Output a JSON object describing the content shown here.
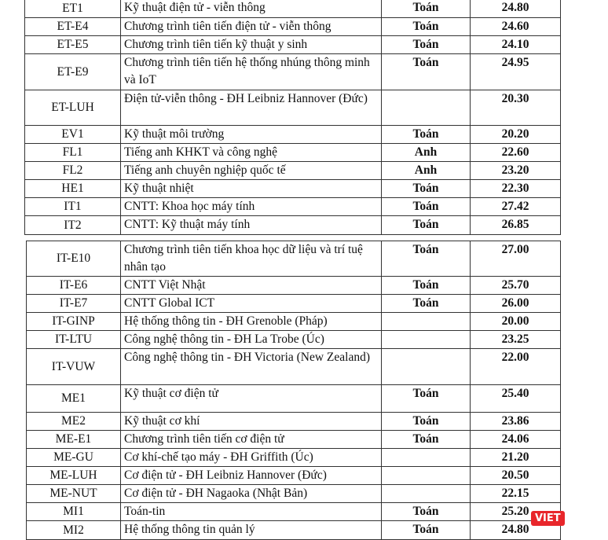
{
  "tables": [
    {
      "rows": [
        [
          "ET1",
          "Kỹ thuật điện tử - viễn thông",
          "Toán",
          "24.80"
        ],
        [
          "ET-E4",
          "Chương trình tiên tiến điện tử - viễn thông",
          "Toán",
          "24.60"
        ],
        [
          "ET-E5",
          "Chương trình tiên tiến kỹ thuật y sinh",
          "Toán",
          "24.10"
        ],
        [
          "ET-E9",
          "Chương trình tiên tiến hệ thống nhúng thông minh và IoT",
          "Toán",
          "24.95"
        ],
        [
          "ET-LUH",
          "Điện tử-viễn thông  - ĐH Leibniz Hannover  (Đức)",
          "",
          "20.30"
        ],
        [
          "EV1",
          "Kỹ thuật môi trường",
          "Toán",
          "20.20"
        ],
        [
          "FL1",
          "Tiếng anh KHKT và công nghệ",
          "Anh",
          "22.60"
        ],
        [
          "FL2",
          "Tiếng anh chuyên nghiệp quốc tế",
          "Anh",
          "23.20"
        ],
        [
          "HE1",
          "Kỹ thuật nhiệt",
          "Toán",
          "22.30"
        ],
        [
          "IT1",
          "CNTT: Khoa học máy tính",
          "Toán",
          "27.42"
        ],
        [
          "IT2",
          "CNTT: Kỹ thuật máy tính",
          "Toán",
          "26.85"
        ]
      ]
    },
    {
      "rows": [
        [
          "IT-E10",
          "Chương trình tiên tiến khoa học dữ liệu và trí tuệ nhân tạo",
          "Toán",
          "27.00"
        ],
        [
          "IT-E6",
          "CNTT Việt Nhật",
          "Toán",
          "25.70"
        ],
        [
          "IT-E7",
          "CNTT Global ICT",
          "Toán",
          "26.00"
        ],
        [
          "IT-GINP",
          "Hệ thống thông tin - ĐH Grenoble (Pháp)",
          "",
          "20.00"
        ],
        [
          "IT-LTU",
          "Công nghệ thông tin - ĐH La Trobe (Úc)",
          "",
          "23.25"
        ],
        [
          "IT-VUW",
          "Công nghệ thông tin - ĐH Victoria (New Zealand)",
          "",
          "22.00"
        ],
        [
          "ME1",
          "Kỹ thuật cơ điện tử",
          "Toán",
          "25.40"
        ],
        [
          "ME2",
          "Kỹ thuật cơ khí",
          "Toán",
          "23.86"
        ],
        [
          "ME-E1",
          "Chương trình tiên tiến cơ điện tử",
          "Toán",
          "24.06"
        ],
        [
          "ME-GU",
          "Cơ khí-chế tạo máy  - ĐH Griffith (Úc)",
          "",
          "21.20"
        ],
        [
          "ME-LUH",
          "Cơ điện tử - ĐH Leibniz Hannover (Đức)",
          "",
          "20.50"
        ],
        [
          "ME-NUT",
          "Cơ điện tử - ĐH Nagaoka (Nhật Bản)",
          "",
          "22.15"
        ],
        [
          "MI1",
          "Toán-tin",
          "Toán",
          "25.20"
        ],
        [
          "MI2",
          "Hệ thống thông tin quản lý",
          "Toán",
          "24.80"
        ]
      ]
    }
  ],
  "watermark": "VIET"
}
